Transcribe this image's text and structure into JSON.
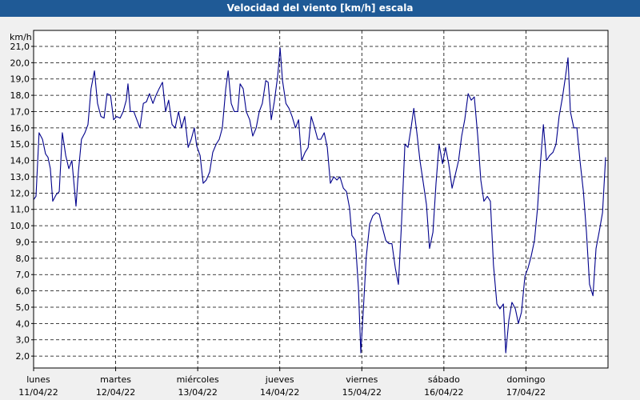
{
  "chart_data": {
    "type": "line",
    "title": "Velocidad del viento [km/h] escala",
    "y_label": "km/h",
    "color": "#00008b",
    "grid": true,
    "xlim": [
      0,
      168
    ],
    "xticks": [
      {
        "value": 0,
        "label": "lunes",
        "date": "11/04/22"
      },
      {
        "value": 24,
        "label": "martes",
        "date": "12/04/22"
      },
      {
        "value": 48,
        "label": "miércoles",
        "date": "13/04/22"
      },
      {
        "value": 72,
        "label": "jueves",
        "date": "14/04/22"
      },
      {
        "value": 96,
        "label": "viernes",
        "date": "15/04/22"
      },
      {
        "value": 120,
        "label": "sábado",
        "date": "16/04/22"
      },
      {
        "value": 144,
        "label": "domingo",
        "date": "17/04/22"
      }
    ],
    "ylim": [
      1.27,
      21.98
    ],
    "yticks": [
      {
        "value": 2,
        "label": "2,0"
      },
      {
        "value": 3,
        "label": "3,0"
      },
      {
        "value": 4,
        "label": "4,0"
      },
      {
        "value": 5,
        "label": "5,0"
      },
      {
        "value": 6,
        "label": "6,0"
      },
      {
        "value": 7,
        "label": "7,0"
      },
      {
        "value": 8,
        "label": "8,0"
      },
      {
        "value": 9,
        "label": "9,0"
      },
      {
        "value": 10,
        "label": "10,0"
      },
      {
        "value": 11,
        "label": "11,0"
      },
      {
        "value": 12,
        "label": "12,0"
      },
      {
        "value": 13,
        "label": "13,0"
      },
      {
        "value": 14,
        "label": "14,0"
      },
      {
        "value": 15,
        "label": "15,0"
      },
      {
        "value": 16,
        "label": "16,0"
      },
      {
        "value": 17,
        "label": "17,0"
      },
      {
        "value": 18,
        "label": "18,0"
      },
      {
        "value": 19,
        "label": "19,0"
      },
      {
        "value": 20,
        "label": "20,0"
      },
      {
        "value": 21,
        "label": "21,0"
      }
    ],
    "x": [
      0,
      0.7,
      1.6,
      2.6,
      3.5,
      4.2,
      4.9,
      5.6,
      6.6,
      7.5,
      8.4,
      9.4,
      10.3,
      11.2,
      12.4,
      13.1,
      14.0,
      15.0,
      15.9,
      16.8,
      17.8,
      18.7,
      19.7,
      20.6,
      21.5,
      22.5,
      23.4,
      24.3,
      25.3,
      26.2,
      27.1,
      27.6,
      28.3,
      29.3,
      30.2,
      31.1,
      32.1,
      33.0,
      33.9,
      34.9,
      35.8,
      36.7,
      37.7,
      38.6,
      39.5,
      40.5,
      41.4,
      42.4,
      43.3,
      44.2,
      45.2,
      46.1,
      47.0,
      47.7,
      48.7,
      49.6,
      50.5,
      51.5,
      52.4,
      53.4,
      54.3,
      55.2,
      56.2,
      56.9,
      57.8,
      58.7,
      59.7,
      60.4,
      61.3,
      62.2,
      63.2,
      64.1,
      65.1,
      66.0,
      66.9,
      67.9,
      68.6,
      69.5,
      70.4,
      71.4,
      72.1,
      72.8,
      73.8,
      74.7,
      75.6,
      76.6,
      77.5,
      78.4,
      79.4,
      80.3,
      81.2,
      82.2,
      83.1,
      84.0,
      85.0,
      85.9,
      86.8,
      87.8,
      88.7,
      89.6,
      90.6,
      91.5,
      92.4,
      93.1,
      94.1,
      95.0,
      95.7,
      96.4,
      97.3,
      98.3,
      99.2,
      100.2,
      101.1,
      102.0,
      103.0,
      103.9,
      104.8,
      105.8,
      106.7,
      107.6,
      108.6,
      109.5,
      110.4,
      111.2,
      112.1,
      113.0,
      114.0,
      114.9,
      115.8,
      116.8,
      117.7,
      118.6,
      119.6,
      120.5,
      121.4,
      122.4,
      123.3,
      124.3,
      125.2,
      126.1,
      127.1,
      128.0,
      128.9,
      129.9,
      130.8,
      131.7,
      132.7,
      133.6,
      134.5,
      135.5,
      136.4,
      137.4,
      138.1,
      139.0,
      139.9,
      140.9,
      141.8,
      142.7,
      143.7,
      144.6,
      145.5,
      146.5,
      147.4,
      148.3,
      149.1,
      150.0,
      150.9,
      151.9,
      152.8,
      153.7,
      154.7,
      155.6,
      156.3,
      157.0,
      158.0,
      158.9,
      159.8,
      160.8,
      161.7,
      162.6,
      163.6,
      164.5,
      165.4,
      166.4,
      167.3
    ],
    "values": [
      11.6,
      11.8,
      15.7,
      15.3,
      14.4,
      14.2,
      13.5,
      11.5,
      11.9,
      12.1,
      15.7,
      14.3,
      13.5,
      14.0,
      11.2,
      13.3,
      15.3,
      15.7,
      16.2,
      18.4,
      19.5,
      17.5,
      16.7,
      16.6,
      18.1,
      18.0,
      16.5,
      16.7,
      16.6,
      17.0,
      17.7,
      18.7,
      17.0,
      17.0,
      16.5,
      16.0,
      17.5,
      17.6,
      18.1,
      17.5,
      18.0,
      18.4,
      18.8,
      17.0,
      17.7,
      16.2,
      16.0,
      17.0,
      16.0,
      16.7,
      14.8,
      15.3,
      16.0,
      14.9,
      14.3,
      12.6,
      12.8,
      13.3,
      14.5,
      15.0,
      15.3,
      16.0,
      18.4,
      19.5,
      17.5,
      17.0,
      17.0,
      18.7,
      18.4,
      17.0,
      16.5,
      15.5,
      16.0,
      17.0,
      17.5,
      18.9,
      18.8,
      16.5,
      17.6,
      19.2,
      20.9,
      18.9,
      17.5,
      17.2,
      16.7,
      16.0,
      16.5,
      14.0,
      14.5,
      14.8,
      16.7,
      16.0,
      15.3,
      15.3,
      15.7,
      14.8,
      12.6,
      13.0,
      12.8,
      13.0,
      12.3,
      12.1,
      11.1,
      9.4,
      9.1,
      6.2,
      2.2,
      4.7,
      8.1,
      10.1,
      10.6,
      10.8,
      10.7,
      9.9,
      9.1,
      8.9,
      8.9,
      7.4,
      6.4,
      10.1,
      15.0,
      14.8,
      16.0,
      17.2,
      15.7,
      14.0,
      12.6,
      11.3,
      8.6,
      9.6,
      12.6,
      15.0,
      13.8,
      14.8,
      13.8,
      12.3,
      13.1,
      14.0,
      15.5,
      16.5,
      18.1,
      17.7,
      17.9,
      15.5,
      12.8,
      11.5,
      11.8,
      11.5,
      7.6,
      5.2,
      4.9,
      5.2,
      2.2,
      4.2,
      5.3,
      4.9,
      4.0,
      4.7,
      6.9,
      7.4,
      8.1,
      9.1,
      11.1,
      14.0,
      16.2,
      14.0,
      14.3,
      14.5,
      15.0,
      16.7,
      17.9,
      19.2,
      20.3,
      17.0,
      16.0,
      16.0,
      14.0,
      12.1,
      9.6,
      6.4,
      5.7,
      8.6,
      9.6,
      10.8,
      14.2
    ]
  }
}
